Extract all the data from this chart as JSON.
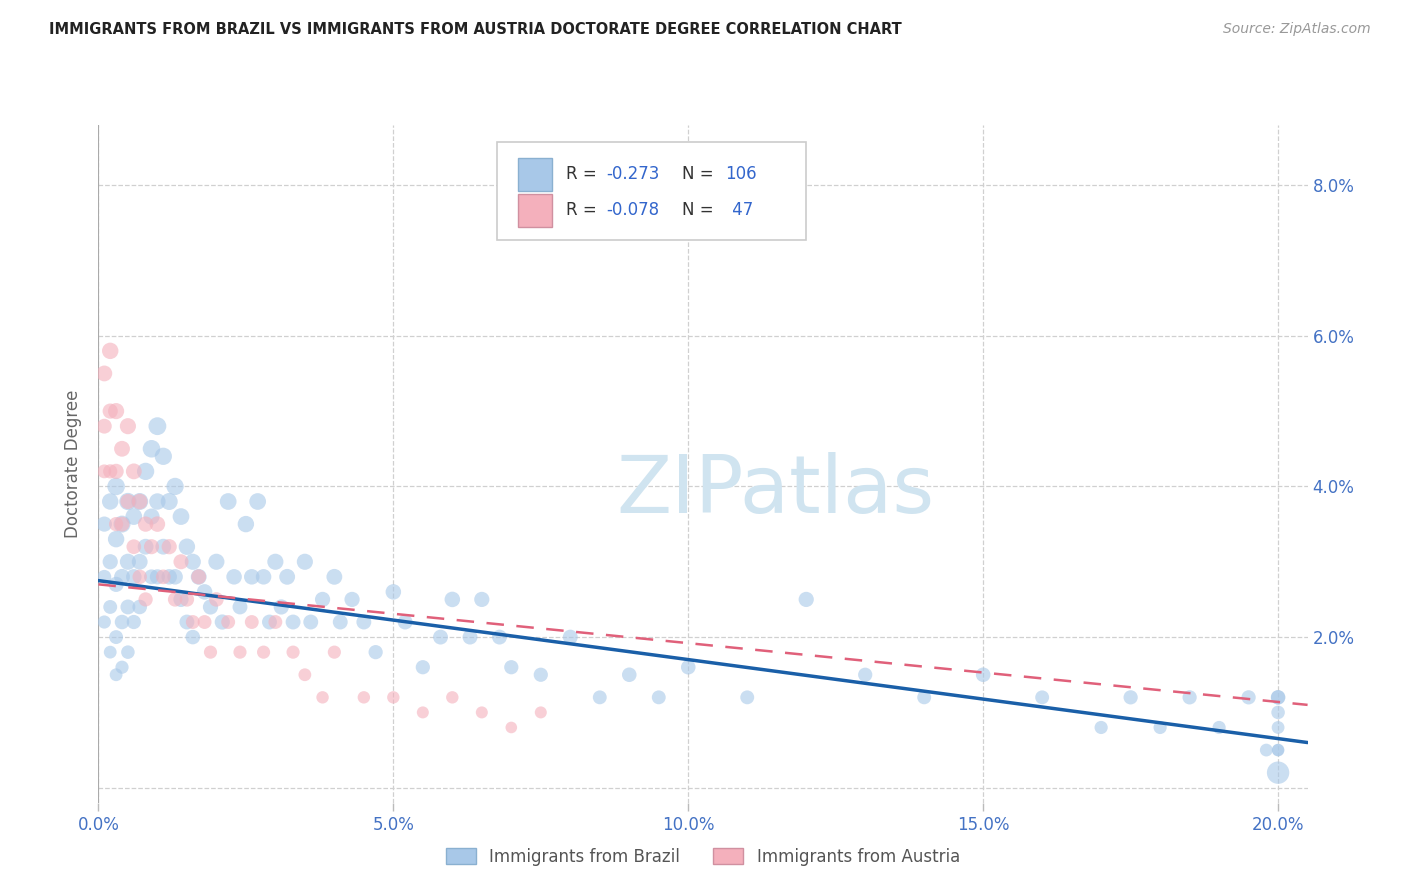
{
  "title": "IMMIGRANTS FROM BRAZIL VS IMMIGRANTS FROM AUSTRIA DOCTORATE DEGREE CORRELATION CHART",
  "source": "Source: ZipAtlas.com",
  "ylabel": "Doctorate Degree",
  "xlim": [
    0.0,
    0.205
  ],
  "ylim": [
    -0.002,
    0.088
  ],
  "xticks": [
    0.0,
    0.05,
    0.1,
    0.15,
    0.2
  ],
  "xticklabels": [
    "0.0%",
    "5.0%",
    "10.0%",
    "15.0%",
    "20.0%"
  ],
  "yticks": [
    0.0,
    0.02,
    0.04,
    0.06,
    0.08
  ],
  "yticklabels_right": [
    "",
    "2.0%",
    "4.0%",
    "6.0%",
    "8.0%"
  ],
  "brazil_color": "#a8c8e8",
  "austria_color": "#f4b0bc",
  "brazil_line_color": "#1a5fa8",
  "austria_line_color": "#e0607a",
  "watermark_color": "#d0e4f0",
  "legend_box_color": "#e8e8e8",
  "tick_color": "#4472c4",
  "grid_color": "#d0d0d0",
  "ylabel_color": "#666666",
  "title_color": "#222222",
  "source_color": "#999999",
  "brazil_R": "-0.273",
  "brazil_N": "106",
  "austria_R": "-0.078",
  "austria_N": "47",
  "watermark": "ZIPatlas",
  "brazil_line_x0": 0.0,
  "brazil_line_x1": 0.205,
  "brazil_line_y0": 0.0275,
  "brazil_line_y1": 0.006,
  "austria_line_x0": 0.0,
  "austria_line_x1": 0.205,
  "austria_line_y0": 0.027,
  "austria_line_y1": 0.011,
  "brazil_scatter_x": [
    0.001,
    0.001,
    0.001,
    0.002,
    0.002,
    0.002,
    0.002,
    0.003,
    0.003,
    0.003,
    0.003,
    0.003,
    0.004,
    0.004,
    0.004,
    0.004,
    0.005,
    0.005,
    0.005,
    0.005,
    0.006,
    0.006,
    0.006,
    0.007,
    0.007,
    0.007,
    0.008,
    0.008,
    0.009,
    0.009,
    0.009,
    0.01,
    0.01,
    0.01,
    0.011,
    0.011,
    0.012,
    0.012,
    0.013,
    0.013,
    0.014,
    0.014,
    0.015,
    0.015,
    0.016,
    0.016,
    0.017,
    0.018,
    0.019,
    0.02,
    0.021,
    0.022,
    0.023,
    0.024,
    0.025,
    0.026,
    0.027,
    0.028,
    0.029,
    0.03,
    0.031,
    0.032,
    0.033,
    0.035,
    0.036,
    0.038,
    0.04,
    0.041,
    0.043,
    0.045,
    0.047,
    0.05,
    0.052,
    0.055,
    0.058,
    0.06,
    0.063,
    0.065,
    0.068,
    0.07,
    0.075,
    0.08,
    0.085,
    0.09,
    0.095,
    0.1,
    0.11,
    0.12,
    0.13,
    0.14,
    0.15,
    0.16,
    0.17,
    0.175,
    0.18,
    0.185,
    0.19,
    0.195,
    0.198,
    0.2,
    0.2,
    0.2,
    0.2,
    0.2,
    0.2,
    0.2
  ],
  "brazil_scatter_y": [
    0.035,
    0.028,
    0.022,
    0.038,
    0.03,
    0.024,
    0.018,
    0.04,
    0.033,
    0.027,
    0.02,
    0.015,
    0.035,
    0.028,
    0.022,
    0.016,
    0.038,
    0.03,
    0.024,
    0.018,
    0.036,
    0.028,
    0.022,
    0.038,
    0.03,
    0.024,
    0.042,
    0.032,
    0.045,
    0.036,
    0.028,
    0.048,
    0.038,
    0.028,
    0.044,
    0.032,
    0.038,
    0.028,
    0.04,
    0.028,
    0.036,
    0.025,
    0.032,
    0.022,
    0.03,
    0.02,
    0.028,
    0.026,
    0.024,
    0.03,
    0.022,
    0.038,
    0.028,
    0.024,
    0.035,
    0.028,
    0.038,
    0.028,
    0.022,
    0.03,
    0.024,
    0.028,
    0.022,
    0.03,
    0.022,
    0.025,
    0.028,
    0.022,
    0.025,
    0.022,
    0.018,
    0.026,
    0.022,
    0.016,
    0.02,
    0.025,
    0.02,
    0.025,
    0.02,
    0.016,
    0.015,
    0.02,
    0.012,
    0.015,
    0.012,
    0.016,
    0.012,
    0.025,
    0.015,
    0.012,
    0.015,
    0.012,
    0.008,
    0.012,
    0.008,
    0.012,
    0.008,
    0.012,
    0.005,
    0.012,
    0.01,
    0.008,
    0.005,
    0.012,
    0.005,
    0.002
  ],
  "brazil_scatter_sizes": [
    120,
    100,
    90,
    140,
    120,
    100,
    85,
    160,
    140,
    120,
    100,
    85,
    150,
    130,
    110,
    90,
    155,
    135,
    115,
    95,
    145,
    125,
    105,
    150,
    130,
    110,
    155,
    130,
    160,
    135,
    115,
    165,
    140,
    120,
    155,
    130,
    150,
    125,
    155,
    125,
    145,
    120,
    140,
    115,
    135,
    110,
    130,
    125,
    120,
    135,
    120,
    145,
    125,
    115,
    140,
    125,
    145,
    125,
    115,
    135,
    120,
    130,
    115,
    135,
    115,
    120,
    130,
    115,
    120,
    115,
    105,
    125,
    115,
    105,
    115,
    125,
    115,
    120,
    115,
    105,
    105,
    115,
    100,
    110,
    100,
    110,
    100,
    120,
    105,
    100,
    110,
    100,
    90,
    105,
    90,
    105,
    90,
    105,
    85,
    110,
    95,
    85,
    80,
    105,
    80,
    260
  ],
  "austria_scatter_x": [
    0.001,
    0.001,
    0.001,
    0.002,
    0.002,
    0.002,
    0.003,
    0.003,
    0.003,
    0.004,
    0.004,
    0.005,
    0.005,
    0.006,
    0.006,
    0.007,
    0.007,
    0.008,
    0.008,
    0.009,
    0.01,
    0.011,
    0.012,
    0.013,
    0.014,
    0.015,
    0.016,
    0.017,
    0.018,
    0.019,
    0.02,
    0.022,
    0.024,
    0.026,
    0.028,
    0.03,
    0.033,
    0.035,
    0.038,
    0.04,
    0.045,
    0.05,
    0.055,
    0.06,
    0.065,
    0.07,
    0.075
  ],
  "austria_scatter_y": [
    0.055,
    0.048,
    0.042,
    0.058,
    0.05,
    0.042,
    0.05,
    0.042,
    0.035,
    0.045,
    0.035,
    0.048,
    0.038,
    0.042,
    0.032,
    0.038,
    0.028,
    0.035,
    0.025,
    0.032,
    0.035,
    0.028,
    0.032,
    0.025,
    0.03,
    0.025,
    0.022,
    0.028,
    0.022,
    0.018,
    0.025,
    0.022,
    0.018,
    0.022,
    0.018,
    0.022,
    0.018,
    0.015,
    0.012,
    0.018,
    0.012,
    0.012,
    0.01,
    0.012,
    0.01,
    0.008,
    0.01
  ],
  "austria_scatter_sizes": [
    130,
    115,
    100,
    140,
    120,
    105,
    135,
    120,
    105,
    130,
    115,
    135,
    118,
    130,
    112,
    125,
    108,
    122,
    105,
    118,
    125,
    112,
    120,
    108,
    118,
    108,
    100,
    115,
    100,
    90,
    110,
    100,
    90,
    100,
    90,
    100,
    90,
    85,
    80,
    90,
    80,
    80,
    75,
    80,
    75,
    70,
    75
  ]
}
